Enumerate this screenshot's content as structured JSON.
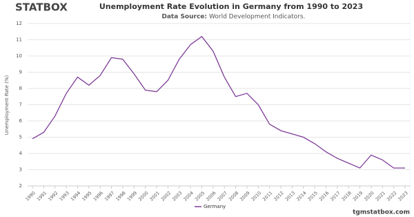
{
  "logo": "STATBOX",
  "watermark": "tgmstatbox.com",
  "chart_data": {
    "type": "line",
    "title": "Unemployment Rate Evolution in Germany from 1990 to 2023",
    "source_label": "Data Source:",
    "source": "World Development Indicators.",
    "y_label": "Unemployment Rate (%)",
    "categories": [
      "1990",
      "1991",
      "1992",
      "1993",
      "1994",
      "1995",
      "1996",
      "1997",
      "1998",
      "1999",
      "2000",
      "2001",
      "2002",
      "2003",
      "2004",
      "2005",
      "2006",
      "2007",
      "2008",
      "2009",
      "2010",
      "2011",
      "2012",
      "2013",
      "2014",
      "2015",
      "2016",
      "2017",
      "2018",
      "2019",
      "2020",
      "2021",
      "2022",
      "2023"
    ],
    "series": [
      {
        "name": "Germany",
        "color": "#7d3c98",
        "values": [
          4.9,
          5.3,
          6.3,
          7.7,
          8.7,
          8.2,
          8.8,
          9.9,
          9.8,
          8.9,
          7.9,
          7.8,
          8.5,
          9.8,
          10.7,
          11.2,
          10.3,
          8.7,
          7.5,
          7.7,
          7.0,
          5.8,
          5.4,
          5.2,
          5.0,
          4.6,
          4.1,
          3.7,
          3.4,
          3.1,
          3.9,
          3.6,
          3.1,
          3.1
        ]
      }
    ],
    "ylim": [
      2,
      12
    ],
    "yticks": [
      2,
      3,
      4,
      5,
      6,
      7,
      8,
      9,
      10,
      11,
      12
    ],
    "grid": true,
    "legend": "bottom"
  }
}
